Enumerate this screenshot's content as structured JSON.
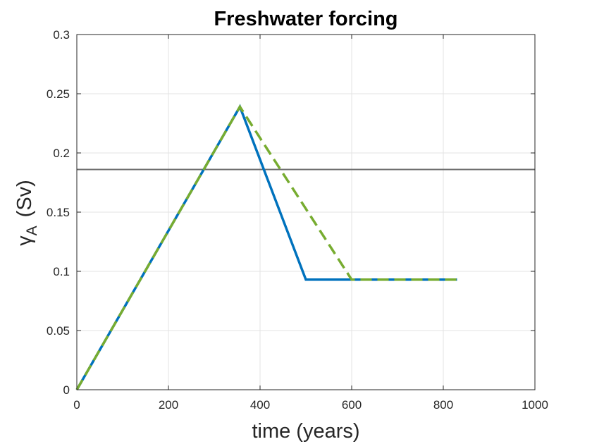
{
  "chart_data": {
    "type": "line",
    "title": "Freshwater forcing",
    "xlabel": "time (years)",
    "ylabel": {
      "symbol": "γ",
      "subscript": "A",
      "unit": "(Sv)"
    },
    "xlim": [
      0,
      1000
    ],
    "ylim": [
      0,
      0.3
    ],
    "grid": true,
    "x_ticks": [
      0,
      200,
      400,
      600,
      800,
      1000
    ],
    "x_tick_labels": [
      "0",
      "200",
      "400",
      "600",
      "800",
      "1000"
    ],
    "y_ticks": [
      0,
      0.05,
      0.1,
      0.15,
      0.2,
      0.25,
      0.3
    ],
    "y_tick_labels": [
      "0",
      "0.05",
      "0.1",
      "0.15",
      "0.2",
      "0.25",
      "0.3"
    ],
    "series": [
      {
        "color": "#0072bd",
        "style": "solid",
        "x": [
          0,
          356,
          500,
          830
        ],
        "y": [
          0,
          0.239,
          0.093,
          0.093
        ]
      },
      {
        "color": "#77ac30",
        "style": "dashed",
        "x": [
          0,
          356,
          600,
          830
        ],
        "y": [
          0,
          0.239,
          0.093,
          0.093
        ]
      }
    ],
    "reference_line": {
      "y": 0.186,
      "color": "#707070"
    }
  }
}
